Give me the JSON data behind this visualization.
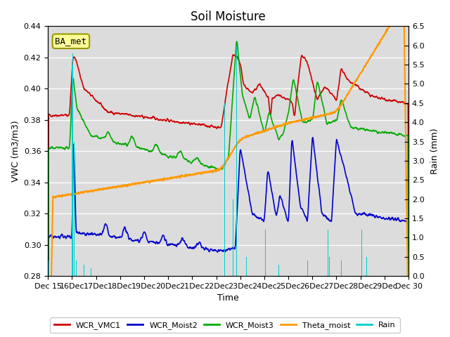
{
  "title": "Soil Moisture",
  "ylabel_left": "VWC (m3/m3)",
  "ylabel_right": "Rain (mm)",
  "xlabel": "Time",
  "ylim_left": [
    0.28,
    0.44
  ],
  "ylim_right": [
    0.0,
    6.5
  ],
  "yticks_left": [
    0.28,
    0.3,
    0.32,
    0.34,
    0.36,
    0.38,
    0.4,
    0.42,
    0.44
  ],
  "yticks_right": [
    0.0,
    0.5,
    1.0,
    1.5,
    2.0,
    2.5,
    3.0,
    3.5,
    4.0,
    4.5,
    5.0,
    5.5,
    6.0,
    6.5
  ],
  "colors": {
    "WCR_VMC1": "#cc0000",
    "WCR_Moist2": "#0000cc",
    "WCR_Moist3": "#00aa00",
    "Theta_moist": "#ff9900",
    "Rain": "#00cccc"
  },
  "annotation_text": "BA_met",
  "annotation_bg": "#ffff99",
  "annotation_border": "#999900",
  "background_color": "#dcdcdc",
  "grid_color": "#ffffff",
  "title_fontsize": 12,
  "label_fontsize": 9,
  "tick_fontsize": 8
}
